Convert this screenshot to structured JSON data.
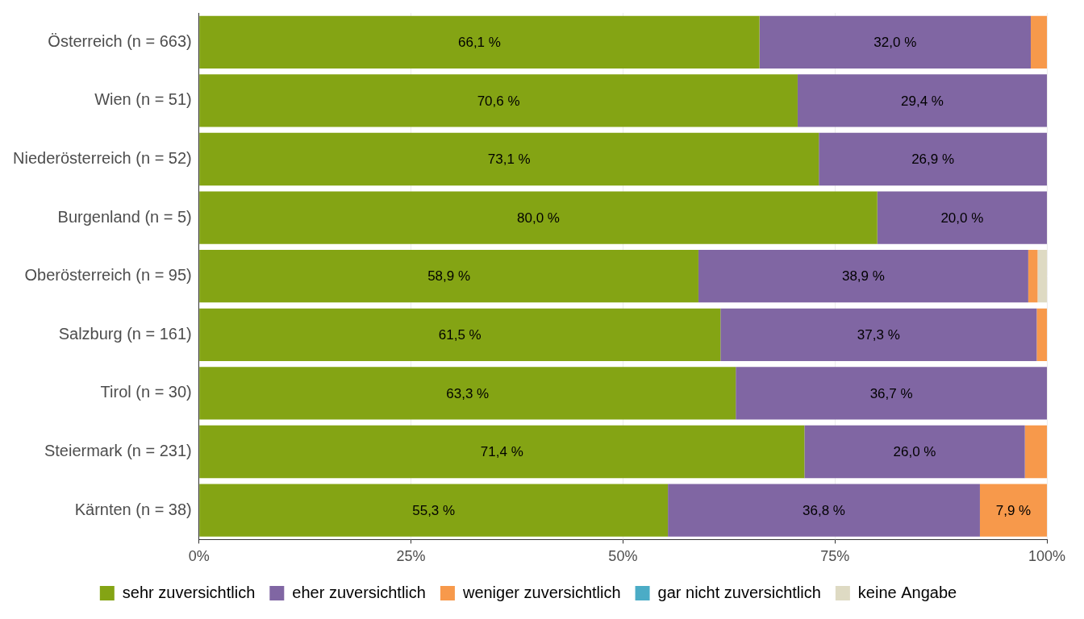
{
  "chart_data": {
    "type": "bar",
    "orientation": "horizontal",
    "stacked": true,
    "data_labels": true,
    "legend": "bottom",
    "grid": true,
    "categories": [
      "Österreich (n = 663)",
      "Wien (n = 51)",
      "Niederösterreich (n = 52)",
      "Burgenland (n = 5)",
      "Oberösterreich (n = 95)",
      "Salzburg (n = 161)",
      "Tirol (n = 30)",
      "Steiermark (n = 231)",
      "Kärnten (n = 38)"
    ],
    "xlim": [
      0,
      100
    ],
    "xticks": [
      {
        "value": 0,
        "label": "0%"
      },
      {
        "value": 25,
        "label": "25%"
      },
      {
        "value": 50,
        "label": "50%"
      },
      {
        "value": 75,
        "label": "75%"
      },
      {
        "value": 100,
        "label": "100%"
      }
    ],
    "series": [
      {
        "name": "sehr zuversichtlich",
        "color": "#84a414",
        "values": [
          66.1,
          70.6,
          73.1,
          80.0,
          58.9,
          61.5,
          63.3,
          71.4,
          55.3
        ],
        "value_labels": [
          "66,1 %",
          "70,6 %",
          "73,1 %",
          "80,0 %",
          "58,9 %",
          "61,5 %",
          "63,3 %",
          "71,4 %",
          "55,3 %"
        ]
      },
      {
        "name": "eher zuversichtlich",
        "color": "#8066a3",
        "values": [
          32.0,
          29.4,
          26.9,
          20.0,
          38.9,
          37.3,
          36.7,
          26.0,
          36.8
        ],
        "value_labels": [
          "32,0 %",
          "29,4 %",
          "26,9 %",
          "20,0 %",
          "38,9 %",
          "37,3 %",
          "36,7 %",
          "26,0 %",
          "36,8 %"
        ]
      },
      {
        "name": "weniger zuversichtlich",
        "color": "#f7994b",
        "values": [
          1.9,
          0,
          0,
          0,
          1.1,
          1.2,
          0,
          2.6,
          7.9
        ],
        "value_labels": [
          null,
          null,
          null,
          null,
          null,
          null,
          null,
          null,
          "7,9 %"
        ]
      },
      {
        "name": "gar nicht zuversichtlich",
        "color": "#4bacc6",
        "values": [
          0,
          0,
          0,
          0,
          0,
          0,
          0,
          0,
          0
        ],
        "value_labels": [
          null,
          null,
          null,
          null,
          null,
          null,
          null,
          null,
          null
        ]
      },
      {
        "name": "keine Angabe",
        "color": "#dedac3",
        "values": [
          0,
          0,
          0,
          0,
          1.1,
          0,
          0,
          0,
          0
        ],
        "value_labels": [
          null,
          null,
          null,
          null,
          null,
          null,
          null,
          null,
          null
        ]
      }
    ]
  }
}
